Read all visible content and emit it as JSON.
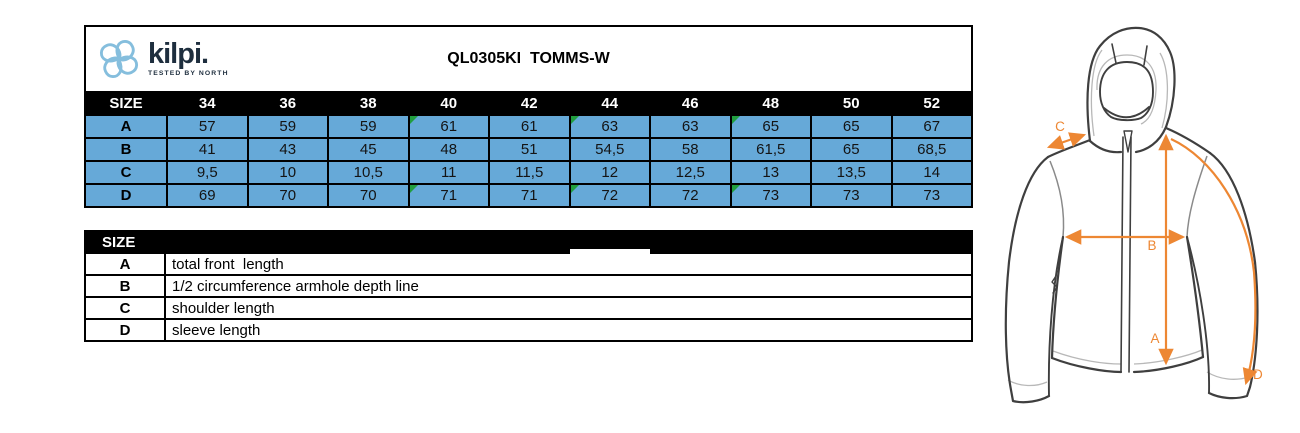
{
  "brand": {
    "wordmark": "kilpi.",
    "tagline": "TESTED BY NORTH",
    "logo_blue": "#85bedd",
    "navy": "#1e2e3e"
  },
  "title": "QL0305KI  TOMMS-W",
  "size_table": {
    "header": [
      "SIZE",
      "34",
      "36",
      "38",
      "40",
      "42",
      "44",
      "46",
      "48",
      "50",
      "52"
    ],
    "rows": [
      {
        "label": "A",
        "values": [
          "57",
          "59",
          "59",
          "61",
          "61",
          "63",
          "63",
          "65",
          "65",
          "67"
        ],
        "flagged": [
          3,
          5,
          7
        ]
      },
      {
        "label": "B",
        "values": [
          "41",
          "43",
          "45",
          "48",
          "51",
          "54,5",
          "58",
          "61,5",
          "65",
          "68,5"
        ],
        "flagged": []
      },
      {
        "label": "C",
        "values": [
          "9,5",
          "10",
          "10,5",
          "11",
          "11,5",
          "12",
          "12,5",
          "13",
          "13,5",
          "14"
        ],
        "flagged": []
      },
      {
        "label": "D",
        "values": [
          "69",
          "70",
          "70",
          "71",
          "71",
          "72",
          "72",
          "73",
          "73",
          "73"
        ],
        "flagged": [
          3,
          5,
          7
        ]
      }
    ],
    "cell_blue": "#66a9d8",
    "flag_green": "#219e3f"
  },
  "legend_table": {
    "header": "SIZE",
    "rows": [
      {
        "label": "A",
        "description": "total front  length"
      },
      {
        "label": "B",
        "description": "1/2 circumference armhole depth line"
      },
      {
        "label": "C",
        "description": "shoulder length"
      },
      {
        "label": "D",
        "description": "sleeve length"
      }
    ]
  },
  "diagram": {
    "label_a": "A",
    "label_b": "B",
    "label_c": "C",
    "label_d": "D",
    "arrow_orange": "#ed8733",
    "outline_dark": "#3f3f3f"
  }
}
